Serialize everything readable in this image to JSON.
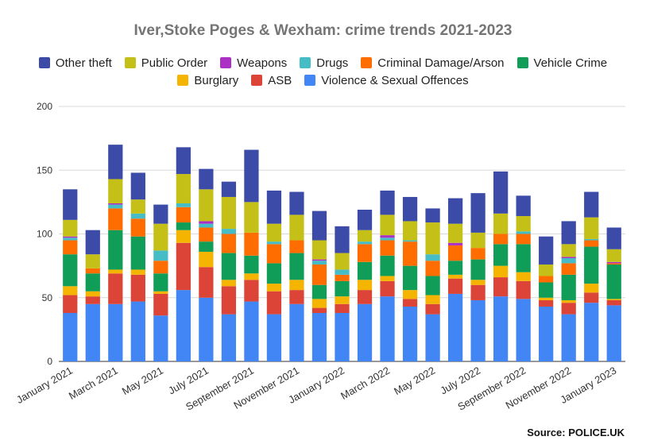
{
  "chart_data": {
    "type": "bar",
    "stacked": true,
    "title": "Iver,Stoke Poges & Wexham: crime trends 2021-2023",
    "xlabel": "",
    "ylabel": "",
    "ylim": [
      0,
      200
    ],
    "yticks": [
      0,
      50,
      100,
      150,
      200
    ],
    "grid": true,
    "legend_position": "top",
    "categories": [
      "January 2021",
      "February 2021",
      "March 2021",
      "April 2021",
      "May 2021",
      "June 2021",
      "July 2021",
      "August 2021",
      "September 2021",
      "October 2021",
      "November 2021",
      "December 2021",
      "January 2022",
      "February 2022",
      "March 2022",
      "April 2022",
      "May 2022",
      "June 2022",
      "July 2022",
      "August 2022",
      "September 2022",
      "October 2022",
      "November 2022",
      "December 2022",
      "January 2023"
    ],
    "tick_labels": [
      "January 2021",
      "",
      "March 2021",
      "",
      "May 2021",
      "",
      "July 2021",
      "",
      "September 2021",
      "",
      "November 2021",
      "",
      "January 2022",
      "",
      "March 2022",
      "",
      "May 2022",
      "",
      "July 2022",
      "",
      "September 2022",
      "",
      "November 2022",
      "",
      "January 2023"
    ],
    "series": [
      {
        "name": "Violence & Sexual Offences",
        "color": "#4285f4",
        "values": [
          38,
          45,
          45,
          47,
          36,
          56,
          50,
          37,
          47,
          37,
          45,
          38,
          38,
          45,
          51,
          43,
          37,
          53,
          48,
          51,
          49,
          43,
          37,
          46,
          44
        ]
      },
      {
        "name": "ASB",
        "color": "#db4437",
        "values": [
          14,
          6,
          24,
          21,
          17,
          37,
          24,
          22,
          17,
          18,
          11,
          4,
          7,
          11,
          12,
          6,
          8,
          12,
          12,
          15,
          14,
          5,
          9,
          8,
          4
        ]
      },
      {
        "name": "Burglary",
        "color": "#f4b400",
        "values": [
          7,
          4,
          3,
          4,
          2,
          10,
          12,
          5,
          5,
          6,
          8,
          7,
          6,
          8,
          4,
          7,
          7,
          3,
          4,
          9,
          7,
          2,
          2,
          7,
          1
        ]
      },
      {
        "name": "Vehicle Crime",
        "color": "#0f9d58",
        "values": [
          25,
          14,
          31,
          26,
          14,
          6,
          8,
          21,
          14,
          16,
          21,
          11,
          12,
          14,
          16,
          19,
          15,
          11,
          16,
          17,
          22,
          12,
          20,
          29,
          27
        ]
      },
      {
        "name": "Criminal Damage/Arson",
        "color": "#ff6d00",
        "values": [
          11,
          4,
          17,
          14,
          10,
          12,
          11,
          15,
          18,
          15,
          10,
          16,
          5,
          14,
          12,
          19,
          12,
          12,
          9,
          8,
          8,
          5,
          9,
          5,
          1
        ]
      },
      {
        "name": "Drugs",
        "color": "#46bdc6",
        "values": [
          2,
          0,
          3,
          4,
          8,
          3,
          3,
          4,
          0,
          2,
          0,
          3,
          4,
          2,
          2,
          1,
          5,
          0,
          0,
          0,
          2,
          0,
          4,
          1,
          0
        ]
      },
      {
        "name": "Weapons",
        "color": "#ab30c4",
        "values": [
          1,
          0,
          1,
          0,
          0,
          0,
          2,
          0,
          0,
          0,
          0,
          1,
          0,
          0,
          2,
          0,
          0,
          2,
          0,
          0,
          0,
          0,
          1,
          0,
          1
        ]
      },
      {
        "name": "Public Order",
        "color": "#c5c018",
        "values": [
          13,
          11,
          19,
          11,
          21,
          23,
          25,
          25,
          24,
          14,
          20,
          15,
          13,
          9,
          16,
          15,
          25,
          15,
          12,
          16,
          12,
          9,
          10,
          17,
          10
        ]
      },
      {
        "name": "Other theft",
        "color": "#3c4ba8",
        "values": [
          24,
          19,
          27,
          21,
          15,
          21,
          16,
          12,
          41,
          26,
          18,
          23,
          21,
          16,
          19,
          19,
          11,
          20,
          31,
          33,
          16,
          22,
          18,
          20,
          17
        ]
      }
    ],
    "legend_order": [
      "Other theft",
      "Public Order",
      "Weapons",
      "Drugs",
      "Criminal Damage/Arson",
      "Vehicle Crime",
      "Burglary",
      "ASB",
      "Violence & Sexual Offences"
    ]
  },
  "source": "Source: POLICE.UK"
}
